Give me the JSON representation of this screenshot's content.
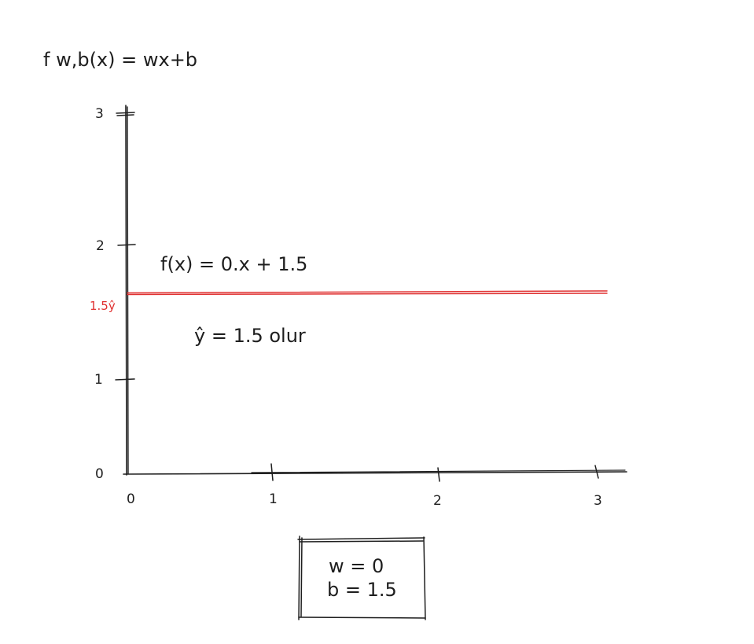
{
  "formula_title": "f w,b(x) = wx+b",
  "equation": "f(x) = 0.x + 1.5",
  "prediction_note": "ŷ = 1.5 olur",
  "params": {
    "w_line": "w = 0",
    "b_line": "b = 1.5"
  },
  "colors": {
    "ink": "#1e1e1e",
    "prediction_line": "#e03131"
  },
  "chart_data": {
    "type": "line",
    "x_ticks": [
      "0",
      "1",
      "2",
      "3"
    ],
    "y_ticks": [
      "0",
      "1",
      "2",
      "3"
    ],
    "xlim": [
      0,
      3
    ],
    "ylim": [
      0,
      3
    ],
    "series": [
      {
        "x": [
          0,
          3
        ],
        "y": [
          1.5,
          1.5
        ],
        "label": "1.5ŷ",
        "color": "#e03131"
      }
    ]
  }
}
